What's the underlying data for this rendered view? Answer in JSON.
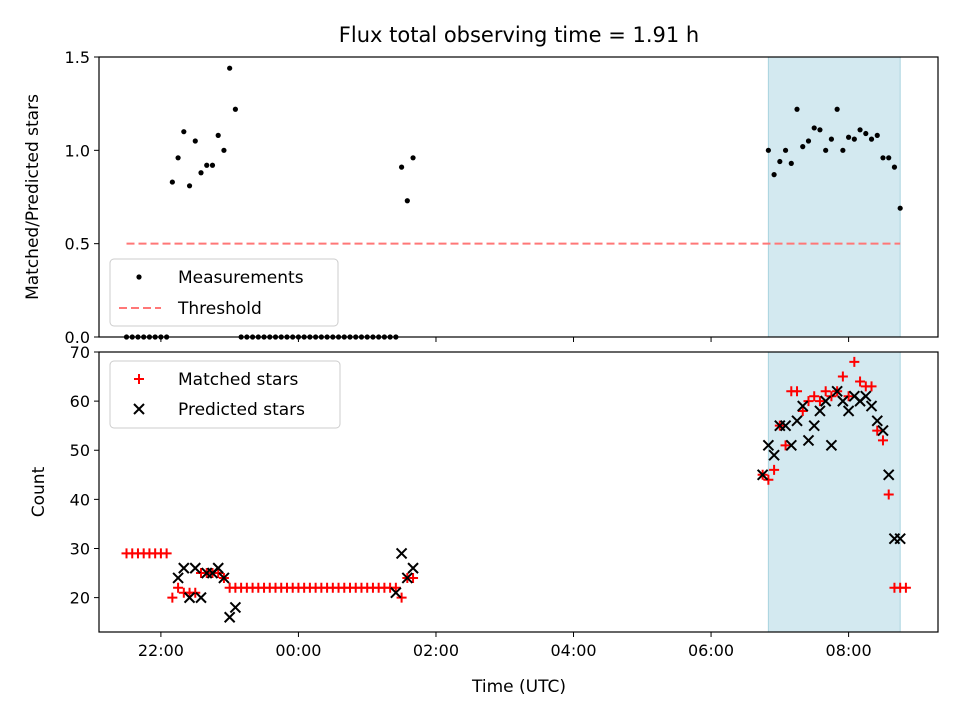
{
  "figure": {
    "title": "Flux total observing time = 1.91 h"
  },
  "chart_data": [
    {
      "type": "scatter",
      "panel": "top",
      "ylabel": "Matched/Predicted stars",
      "xlabel": "",
      "xlim": [
        "21:06",
        "09:18"
      ],
      "ylim": [
        0.0,
        1.5
      ],
      "yticks": [
        "0.0",
        "0.5",
        "1.0",
        "1.5"
      ],
      "xticks": [
        "22:00",
        "00:00",
        "02:00",
        "04:00",
        "06:00",
        "08:00"
      ],
      "shaded_span": {
        "start": "06:50",
        "end": "08:45",
        "color": "#d3e9f0"
      },
      "legend": {
        "position": "lower-left",
        "entries": [
          "Measurements",
          "Threshold"
        ]
      },
      "series": [
        {
          "name": "Measurements",
          "marker": "dot",
          "color": "#000000",
          "x": [
            "21:30",
            "21:35",
            "21:40",
            "21:45",
            "21:50",
            "21:55",
            "22:00",
            "22:05",
            "22:10",
            "22:15",
            "22:20",
            "22:25",
            "22:30",
            "22:35",
            "22:40",
            "22:45",
            "22:50",
            "22:55",
            "23:00",
            "23:05",
            "23:10",
            "23:15",
            "23:20",
            "23:25",
            "23:30",
            "23:35",
            "23:40",
            "23:45",
            "23:50",
            "23:55",
            "00:00",
            "00:05",
            "00:10",
            "00:15",
            "00:20",
            "00:25",
            "00:30",
            "00:35",
            "00:40",
            "00:45",
            "00:50",
            "00:55",
            "01:00",
            "01:05",
            "01:10",
            "01:15",
            "01:20",
            "01:25",
            "01:30",
            "01:35",
            "01:40",
            "06:50",
            "06:55",
            "07:00",
            "07:05",
            "07:10",
            "07:15",
            "07:20",
            "07:25",
            "07:30",
            "07:35",
            "07:40",
            "07:45",
            "07:50",
            "07:55",
            "08:00",
            "08:05",
            "08:10",
            "08:15",
            "08:20",
            "08:25",
            "08:30",
            "08:35",
            "08:40",
            "08:45"
          ],
          "y": [
            0,
            0,
            0,
            0,
            0,
            0,
            0,
            0,
            0.83,
            0.96,
            1.1,
            0.81,
            1.05,
            0.88,
            0.92,
            0.92,
            1.08,
            1.0,
            1.44,
            1.22,
            0,
            0,
            0,
            0,
            0,
            0,
            0,
            0,
            0,
            0,
            0,
            0,
            0,
            0,
            0,
            0,
            0,
            0,
            0,
            0,
            0,
            0,
            0,
            0,
            0,
            0,
            0,
            0,
            0.91,
            0.73,
            0.96,
            1.0,
            0.87,
            0.94,
            1.0,
            0.93,
            1.22,
            1.02,
            1.05,
            1.12,
            1.11,
            1.0,
            1.06,
            1.22,
            1.0,
            1.07,
            1.06,
            1.11,
            1.09,
            1.06,
            1.08,
            0.96,
            0.96,
            0.91,
            0.69
          ]
        },
        {
          "name": "Threshold",
          "style": "dashed",
          "color": "#ff7777",
          "x": [
            "21:30",
            "08:45"
          ],
          "y": [
            0.5,
            0.5
          ]
        }
      ]
    },
    {
      "type": "scatter",
      "panel": "bottom",
      "xlabel": "Time (UTC)",
      "ylabel": "Count",
      "xlim": [
        "21:06",
        "09:18"
      ],
      "ylim": [
        13,
        70
      ],
      "yticks": [
        "20",
        "30",
        "40",
        "50",
        "60",
        "70"
      ],
      "xticks": [
        "22:00",
        "00:00",
        "02:00",
        "04:00",
        "06:00",
        "08:00"
      ],
      "shaded_span": {
        "start": "06:50",
        "end": "08:45",
        "color": "#d3e9f0"
      },
      "legend": {
        "position": "upper-left",
        "entries": [
          "Matched stars",
          "Predicted stars"
        ]
      },
      "series": [
        {
          "name": "Matched stars",
          "marker": "plus",
          "color": "#ff0000",
          "x": [
            "21:30",
            "21:35",
            "21:40",
            "21:45",
            "21:50",
            "21:55",
            "22:00",
            "22:05",
            "22:10",
            "22:15",
            "22:20",
            "22:25",
            "22:30",
            "22:35",
            "22:40",
            "22:45",
            "22:50",
            "22:55",
            "23:00",
            "23:05",
            "23:10",
            "23:15",
            "23:20",
            "23:25",
            "23:30",
            "23:35",
            "23:40",
            "23:45",
            "23:50",
            "23:55",
            "00:00",
            "00:05",
            "00:10",
            "00:15",
            "00:20",
            "00:25",
            "00:30",
            "00:35",
            "00:40",
            "00:45",
            "00:50",
            "00:55",
            "01:00",
            "01:05",
            "01:10",
            "01:15",
            "01:20",
            "01:25",
            "01:30",
            "01:35",
            "01:40",
            "06:45",
            "06:50",
            "06:55",
            "07:00",
            "07:05",
            "07:10",
            "07:15",
            "07:20",
            "07:25",
            "07:30",
            "07:35",
            "07:40",
            "07:45",
            "07:50",
            "07:55",
            "08:00",
            "08:05",
            "08:10",
            "08:15",
            "08:20",
            "08:25",
            "08:30",
            "08:35",
            "08:40",
            "08:45",
            "08:50"
          ],
          "y": [
            29,
            29,
            29,
            29,
            29,
            29,
            29,
            29,
            20,
            22,
            21,
            21,
            21,
            25,
            25,
            25,
            25,
            24,
            22,
            22,
            22,
            22,
            22,
            22,
            22,
            22,
            22,
            22,
            22,
            22,
            22,
            22,
            22,
            22,
            22,
            22,
            22,
            22,
            22,
            22,
            22,
            22,
            22,
            22,
            22,
            22,
            22,
            22,
            20,
            24,
            24,
            45,
            44,
            46,
            55,
            51,
            62,
            62,
            58,
            60,
            61,
            60,
            62,
            61,
            62,
            65,
            61,
            68,
            64,
            63,
            63,
            54,
            52,
            41,
            22,
            22,
            22
          ]
        },
        {
          "name": "Predicted stars",
          "marker": "x",
          "color": "#000000",
          "x": [
            "22:15",
            "22:20",
            "22:25",
            "22:30",
            "22:35",
            "22:40",
            "22:45",
            "22:50",
            "22:55",
            "23:00",
            "23:05",
            "01:25",
            "01:30",
            "01:35",
            "01:40",
            "06:45",
            "06:50",
            "06:55",
            "07:00",
            "07:05",
            "07:10",
            "07:15",
            "07:20",
            "07:25",
            "07:30",
            "07:35",
            "07:40",
            "07:45",
            "07:50",
            "07:55",
            "08:00",
            "08:05",
            "08:10",
            "08:15",
            "08:20",
            "08:25",
            "08:30",
            "08:35",
            "08:40",
            "08:45"
          ],
          "y": [
            24,
            26,
            20,
            26,
            20,
            25,
            25,
            26,
            24,
            16,
            18,
            21,
            29,
            24,
            26,
            45,
            51,
            49,
            55,
            55,
            51,
            56,
            59,
            52,
            55,
            58,
            60,
            51,
            62,
            60,
            58,
            61,
            60,
            61,
            59,
            56,
            54,
            45,
            32,
            32
          ]
        }
      ]
    }
  ]
}
